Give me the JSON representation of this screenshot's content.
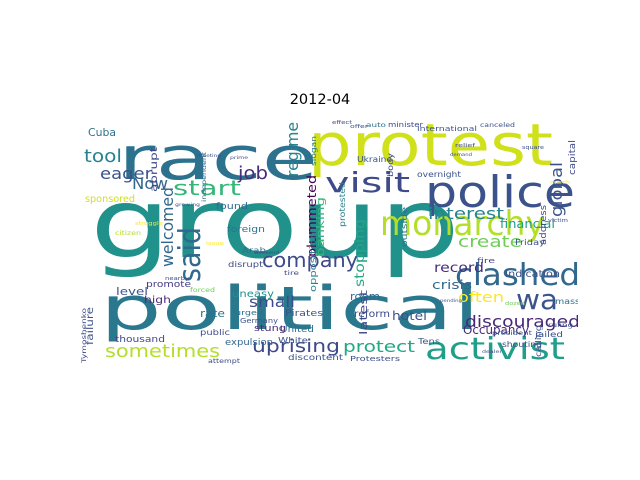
{
  "title": "2012-04",
  "words": [
    {
      "text": "group",
      "color": "#21918c"
    },
    {
      "text": "political",
      "color": "#2a788e"
    },
    {
      "text": "race",
      "color": "#2c728e"
    },
    {
      "text": "protest",
      "color": "#d0e11c"
    },
    {
      "text": "police",
      "color": "#3b528b"
    },
    {
      "text": "monarchy",
      "color": "#b5de2b"
    },
    {
      "text": "visit",
      "color": "#3e4a89"
    },
    {
      "text": "clashed",
      "color": "#31688e"
    },
    {
      "text": "wa",
      "color": "#3b528b"
    },
    {
      "text": "activist",
      "color": "#1f9e89"
    },
    {
      "text": "said",
      "color": "#31688e"
    },
    {
      "text": "start",
      "color": "#35b779"
    },
    {
      "text": "tool",
      "color": "#26828e"
    },
    {
      "text": "eager",
      "color": "#3b528b"
    },
    {
      "text": "Now",
      "color": "#31688e"
    },
    {
      "text": "job",
      "color": "#472c7a"
    },
    {
      "text": "company",
      "color": "#3e4a89"
    },
    {
      "text": "interest",
      "color": "#25848e"
    },
    {
      "text": "create",
      "color": "#6ece58"
    },
    {
      "text": "often",
      "color": "#fde725"
    },
    {
      "text": "discouraged",
      "color": "#482878"
    },
    {
      "text": "sometimes",
      "color": "#b5de2b"
    },
    {
      "text": "uprising",
      "color": "#3e4a89"
    },
    {
      "text": "protect",
      "color": "#22a884"
    },
    {
      "text": "welcomed",
      "color": "#31688e"
    },
    {
      "text": "regime",
      "color": "#26828e"
    },
    {
      "text": "plummeted",
      "color": "#440154"
    },
    {
      "text": "global",
      "color": "#3b528b"
    },
    {
      "text": "financial",
      "color": "#1f9e89"
    },
    {
      "text": "small",
      "color": "#3e4a89"
    },
    {
      "text": "Cuba",
      "color": "#2c728e"
    },
    {
      "text": "abrupt",
      "color": "#3e4a89"
    },
    {
      "text": "record",
      "color": "#472d7b"
    },
    {
      "text": "crisis",
      "color": "#31688e"
    },
    {
      "text": "indication",
      "color": "#3b528b"
    },
    {
      "text": "Occupancy",
      "color": "#482878"
    },
    {
      "text": "hotel",
      "color": "#3b528b"
    },
    {
      "text": "room",
      "color": "#31688e"
    },
    {
      "text": "banking",
      "color": "#35b779"
    },
    {
      "text": "stopping",
      "color": "#22a884"
    },
    {
      "text": "latest",
      "color": "#3e4a89"
    },
    {
      "text": "uneasy",
      "color": "#21918c"
    },
    {
      "text": "level",
      "color": "#3b528b"
    },
    {
      "text": "high",
      "color": "#482878"
    },
    {
      "text": "promote",
      "color": "#443983"
    },
    {
      "text": "rate",
      "color": "#2c728e"
    },
    {
      "text": "thousand",
      "color": "#3e4a89"
    },
    {
      "text": "failure",
      "color": "#3b528b"
    },
    {
      "text": "sponsored",
      "color": "#d0e11c"
    },
    {
      "text": "found",
      "color": "#31688e"
    },
    {
      "text": "foreign",
      "color": "#2c728e"
    },
    {
      "text": "opposition",
      "color": "#26828e"
    },
    {
      "text": "reform",
      "color": "#3e4a89"
    },
    {
      "text": "Pirates",
      "color": "#3b528b"
    },
    {
      "text": "United",
      "color": "#2c728e"
    },
    {
      "text": "White",
      "color": "#3b528b"
    },
    {
      "text": "stung",
      "color": "#482878"
    },
    {
      "text": "discontent",
      "color": "#3b528b"
    },
    {
      "text": "expulsion",
      "color": "#31688e"
    },
    {
      "text": "public",
      "color": "#3e4a89"
    },
    {
      "text": "Germany",
      "color": "#3b528b"
    },
    {
      "text": "Arab",
      "color": "#2c728e"
    },
    {
      "text": "disrupt",
      "color": "#3e4a89"
    },
    {
      "text": "Friday",
      "color": "#3b528b"
    },
    {
      "text": "address",
      "color": "#3e4a89"
    },
    {
      "text": "capital",
      "color": "#3e4a89"
    },
    {
      "text": "mass",
      "color": "#2c728e"
    },
    {
      "text": "jailed",
      "color": "#3b528b"
    },
    {
      "text": "shouting",
      "color": "#3e4a89"
    },
    {
      "text": "Tens",
      "color": "#3b528b"
    },
    {
      "text": "calling",
      "color": "#3b528b"
    },
    {
      "text": "Protesters",
      "color": "#3b528b"
    },
    {
      "text": "urged",
      "color": "#2c728e"
    },
    {
      "text": "fire",
      "color": "#3e4a89"
    },
    {
      "text": "outside",
      "color": "#2c728e"
    },
    {
      "text": "body",
      "color": "#3e4a89"
    },
    {
      "text": "protested",
      "color": "#26828e"
    },
    {
      "text": "Ukraine",
      "color": "#3b528b"
    },
    {
      "text": "minister",
      "color": "#3e4a89"
    },
    {
      "text": "auto",
      "color": "#2c728e"
    },
    {
      "text": "international",
      "color": "#3b528b"
    },
    {
      "text": "overnight",
      "color": "#3b528b"
    },
    {
      "text": "independent",
      "color": "#31688e"
    },
    {
      "text": "Tymoshenko",
      "color": "#3e4a89"
    },
    {
      "text": "ruling",
      "color": "#3b528b"
    },
    {
      "text": "president",
      "color": "#3b528b"
    },
    {
      "text": "attempt",
      "color": "#3e4a89"
    },
    {
      "text": "nearby",
      "color": "#3b528b"
    },
    {
      "text": "tire",
      "color": "#3e4a89"
    },
    {
      "text": "slogan",
      "color": "#2c728e"
    },
    {
      "text": "canceled",
      "color": "#3b528b"
    },
    {
      "text": "effect",
      "color": "#3e4a89"
    },
    {
      "text": "offer",
      "color": "#3b528b"
    },
    {
      "text": "relief",
      "color": "#3e4a89"
    },
    {
      "text": "growing",
      "color": "#3b528b"
    },
    {
      "text": "weekend",
      "color": "#3e4a89"
    },
    {
      "text": "forced",
      "color": "#6ece58"
    },
    {
      "text": "issue",
      "color": "#fde725"
    },
    {
      "text": "citizen",
      "color": "#b5de2b"
    },
    {
      "text": "pending",
      "color": "#3b528b"
    },
    {
      "text": "dealer",
      "color": "#3e4a89"
    },
    {
      "text": "struggle",
      "color": "#fde725"
    },
    {
      "text": "victim",
      "color": "#3b528b"
    },
    {
      "text": "dozen",
      "color": "#6ece58"
    },
    {
      "text": "prime",
      "color": "#3e4a89"
    },
    {
      "text": "meeting",
      "color": "#3b528b"
    },
    {
      "text": "march",
      "color": "#fde725"
    },
    {
      "text": "demand",
      "color": "#3e4a89"
    },
    {
      "text": "square",
      "color": "#3b528b"
    }
  ]
}
